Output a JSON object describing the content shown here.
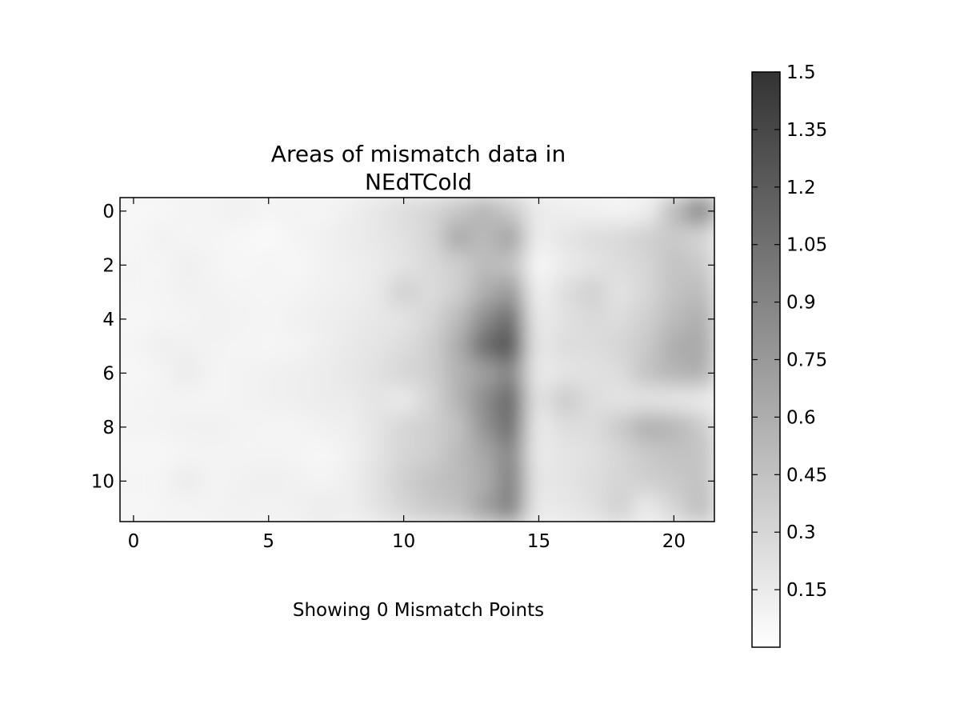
{
  "chart_data": {
    "type": "heatmap",
    "title_lines": [
      "Areas of mismatch data in",
      "NEdTCold"
    ],
    "xlabel": "",
    "ylabel": "",
    "caption": "Showing 0 Mismatch Points",
    "xlim": [
      -0.5,
      21.5
    ],
    "ylim": [
      11.5,
      -0.5
    ],
    "x_ticks": [
      0,
      5,
      10,
      15,
      20
    ],
    "x_tick_labels": [
      "0",
      "5",
      "10",
      "15",
      "20"
    ],
    "y_ticks": [
      0,
      2,
      4,
      6,
      8,
      10
    ],
    "y_tick_labels": [
      "0",
      "2",
      "4",
      "6",
      "8",
      "10"
    ],
    "grid": false,
    "interpolation": "smooth",
    "colormap": {
      "low": "#ffffff",
      "high": "#333333"
    },
    "colorbar": {
      "vmin": 0.0,
      "vmax": 1.5,
      "ticks": [
        0.15,
        0.3,
        0.45,
        0.6,
        0.75,
        0.9,
        1.05,
        1.2,
        1.35,
        1.5
      ],
      "tick_labels": [
        "0.15",
        "0.3",
        "0.45",
        "0.6",
        "0.75",
        "0.9",
        "1.05",
        "1.2",
        "1.35",
        "1.5"
      ]
    },
    "rows": 12,
    "cols": 22,
    "values": [
      [
        0.05,
        0.06,
        0.08,
        0.09,
        0.1,
        0.08,
        0.09,
        0.07,
        0.12,
        0.18,
        0.25,
        0.3,
        0.42,
        0.55,
        0.4,
        0.15,
        0.12,
        0.1,
        0.08,
        0.12,
        0.5,
        0.95
      ],
      [
        0.06,
        0.1,
        0.07,
        0.08,
        0.06,
        0.04,
        0.08,
        0.1,
        0.14,
        0.18,
        0.22,
        0.3,
        0.65,
        0.5,
        0.7,
        0.12,
        0.2,
        0.25,
        0.28,
        0.35,
        0.4,
        0.3
      ],
      [
        0.08,
        0.07,
        0.12,
        0.08,
        0.06,
        0.08,
        0.06,
        0.09,
        0.12,
        0.15,
        0.2,
        0.28,
        0.35,
        0.5,
        0.45,
        0.05,
        0.15,
        0.2,
        0.25,
        0.3,
        0.45,
        0.4
      ],
      [
        0.07,
        0.08,
        0.1,
        0.09,
        0.08,
        0.07,
        0.08,
        0.1,
        0.12,
        0.16,
        0.35,
        0.25,
        0.35,
        0.6,
        0.75,
        0.1,
        0.25,
        0.35,
        0.2,
        0.3,
        0.45,
        0.5
      ],
      [
        0.06,
        0.07,
        0.08,
        0.1,
        0.09,
        0.08,
        0.1,
        0.12,
        0.15,
        0.18,
        0.2,
        0.3,
        0.5,
        0.85,
        1.1,
        0.15,
        0.22,
        0.28,
        0.25,
        0.35,
        0.5,
        0.6
      ],
      [
        0.07,
        0.12,
        0.1,
        0.09,
        0.08,
        0.07,
        0.08,
        0.12,
        0.16,
        0.2,
        0.25,
        0.35,
        0.6,
        1.1,
        1.3,
        0.18,
        0.25,
        0.25,
        0.3,
        0.4,
        0.6,
        0.65
      ],
      [
        0.06,
        0.08,
        0.15,
        0.08,
        0.09,
        0.1,
        0.12,
        0.14,
        0.18,
        0.22,
        0.3,
        0.35,
        0.55,
        0.7,
        0.9,
        0.15,
        0.2,
        0.22,
        0.25,
        0.45,
        0.55,
        0.6
      ],
      [
        0.07,
        0.09,
        0.08,
        0.08,
        0.09,
        0.1,
        0.12,
        0.14,
        0.15,
        0.2,
        0.15,
        0.3,
        0.55,
        0.85,
        1.15,
        0.2,
        0.4,
        0.25,
        0.2,
        0.2,
        0.18,
        0.15
      ],
      [
        0.08,
        0.09,
        0.1,
        0.1,
        0.09,
        0.08,
        0.08,
        0.1,
        0.12,
        0.2,
        0.3,
        0.35,
        0.45,
        0.8,
        1.1,
        0.15,
        0.25,
        0.25,
        0.4,
        0.6,
        0.55,
        0.4
      ],
      [
        0.06,
        0.06,
        0.08,
        0.09,
        0.08,
        0.09,
        0.08,
        0.06,
        0.1,
        0.2,
        0.3,
        0.35,
        0.5,
        0.65,
        0.9,
        0.15,
        0.2,
        0.22,
        0.3,
        0.4,
        0.45,
        0.45
      ],
      [
        0.07,
        0.08,
        0.15,
        0.08,
        0.1,
        0.12,
        0.1,
        0.08,
        0.12,
        0.22,
        0.35,
        0.45,
        0.5,
        0.6,
        0.95,
        0.18,
        0.2,
        0.25,
        0.3,
        0.35,
        0.4,
        0.45
      ],
      [
        0.06,
        0.07,
        0.08,
        0.09,
        0.1,
        0.09,
        0.1,
        0.15,
        0.12,
        0.2,
        0.3,
        0.4,
        0.45,
        0.7,
        0.95,
        0.15,
        0.18,
        0.22,
        0.35,
        0.15,
        0.3,
        0.5
      ]
    ]
  }
}
